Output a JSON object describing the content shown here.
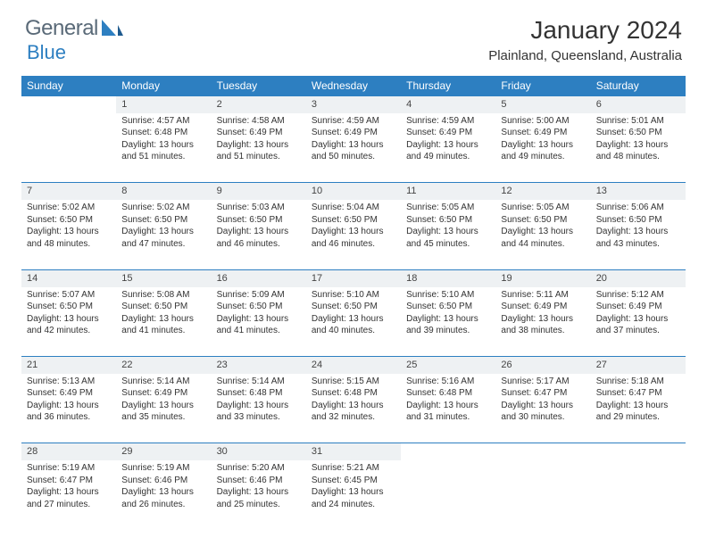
{
  "logo": {
    "text1": "General",
    "text2": "Blue"
  },
  "title": "January 2024",
  "location": "Plainland, Queensland, Australia",
  "colors": {
    "header_bg": "#2d7fc1",
    "header_text": "#ffffff",
    "daynum_bg": "#eef1f3",
    "rule": "#2d7fc1",
    "body_text": "#333333",
    "logo_gray": "#5a6a78",
    "logo_blue": "#2d7fc1",
    "page_bg": "#ffffff"
  },
  "typography": {
    "month_title_pt": 21,
    "location_pt": 11,
    "weekday_pt": 9,
    "daynum_pt": 8,
    "body_pt": 7.5,
    "logo_pt": 18
  },
  "weekdays": [
    "Sunday",
    "Monday",
    "Tuesday",
    "Wednesday",
    "Thursday",
    "Friday",
    "Saturday"
  ],
  "weeks": [
    [
      null,
      {
        "n": "1",
        "sunrise": "4:57 AM",
        "sunset": "6:48 PM",
        "dl": "13 hours and 51 minutes."
      },
      {
        "n": "2",
        "sunrise": "4:58 AM",
        "sunset": "6:49 PM",
        "dl": "13 hours and 51 minutes."
      },
      {
        "n": "3",
        "sunrise": "4:59 AM",
        "sunset": "6:49 PM",
        "dl": "13 hours and 50 minutes."
      },
      {
        "n": "4",
        "sunrise": "4:59 AM",
        "sunset": "6:49 PM",
        "dl": "13 hours and 49 minutes."
      },
      {
        "n": "5",
        "sunrise": "5:00 AM",
        "sunset": "6:49 PM",
        "dl": "13 hours and 49 minutes."
      },
      {
        "n": "6",
        "sunrise": "5:01 AM",
        "sunset": "6:50 PM",
        "dl": "13 hours and 48 minutes."
      }
    ],
    [
      {
        "n": "7",
        "sunrise": "5:02 AM",
        "sunset": "6:50 PM",
        "dl": "13 hours and 48 minutes."
      },
      {
        "n": "8",
        "sunrise": "5:02 AM",
        "sunset": "6:50 PM",
        "dl": "13 hours and 47 minutes."
      },
      {
        "n": "9",
        "sunrise": "5:03 AM",
        "sunset": "6:50 PM",
        "dl": "13 hours and 46 minutes."
      },
      {
        "n": "10",
        "sunrise": "5:04 AM",
        "sunset": "6:50 PM",
        "dl": "13 hours and 46 minutes."
      },
      {
        "n": "11",
        "sunrise": "5:05 AM",
        "sunset": "6:50 PM",
        "dl": "13 hours and 45 minutes."
      },
      {
        "n": "12",
        "sunrise": "5:05 AM",
        "sunset": "6:50 PM",
        "dl": "13 hours and 44 minutes."
      },
      {
        "n": "13",
        "sunrise": "5:06 AM",
        "sunset": "6:50 PM",
        "dl": "13 hours and 43 minutes."
      }
    ],
    [
      {
        "n": "14",
        "sunrise": "5:07 AM",
        "sunset": "6:50 PM",
        "dl": "13 hours and 42 minutes."
      },
      {
        "n": "15",
        "sunrise": "5:08 AM",
        "sunset": "6:50 PM",
        "dl": "13 hours and 41 minutes."
      },
      {
        "n": "16",
        "sunrise": "5:09 AM",
        "sunset": "6:50 PM",
        "dl": "13 hours and 41 minutes."
      },
      {
        "n": "17",
        "sunrise": "5:10 AM",
        "sunset": "6:50 PM",
        "dl": "13 hours and 40 minutes."
      },
      {
        "n": "18",
        "sunrise": "5:10 AM",
        "sunset": "6:50 PM",
        "dl": "13 hours and 39 minutes."
      },
      {
        "n": "19",
        "sunrise": "5:11 AM",
        "sunset": "6:49 PM",
        "dl": "13 hours and 38 minutes."
      },
      {
        "n": "20",
        "sunrise": "5:12 AM",
        "sunset": "6:49 PM",
        "dl": "13 hours and 37 minutes."
      }
    ],
    [
      {
        "n": "21",
        "sunrise": "5:13 AM",
        "sunset": "6:49 PM",
        "dl": "13 hours and 36 minutes."
      },
      {
        "n": "22",
        "sunrise": "5:14 AM",
        "sunset": "6:49 PM",
        "dl": "13 hours and 35 minutes."
      },
      {
        "n": "23",
        "sunrise": "5:14 AM",
        "sunset": "6:48 PM",
        "dl": "13 hours and 33 minutes."
      },
      {
        "n": "24",
        "sunrise": "5:15 AM",
        "sunset": "6:48 PM",
        "dl": "13 hours and 32 minutes."
      },
      {
        "n": "25",
        "sunrise": "5:16 AM",
        "sunset": "6:48 PM",
        "dl": "13 hours and 31 minutes."
      },
      {
        "n": "26",
        "sunrise": "5:17 AM",
        "sunset": "6:47 PM",
        "dl": "13 hours and 30 minutes."
      },
      {
        "n": "27",
        "sunrise": "5:18 AM",
        "sunset": "6:47 PM",
        "dl": "13 hours and 29 minutes."
      }
    ],
    [
      {
        "n": "28",
        "sunrise": "5:19 AM",
        "sunset": "6:47 PM",
        "dl": "13 hours and 27 minutes."
      },
      {
        "n": "29",
        "sunrise": "5:19 AM",
        "sunset": "6:46 PM",
        "dl": "13 hours and 26 minutes."
      },
      {
        "n": "30",
        "sunrise": "5:20 AM",
        "sunset": "6:46 PM",
        "dl": "13 hours and 25 minutes."
      },
      {
        "n": "31",
        "sunrise": "5:21 AM",
        "sunset": "6:45 PM",
        "dl": "13 hours and 24 minutes."
      },
      null,
      null,
      null
    ]
  ],
  "labels": {
    "sunrise": "Sunrise:",
    "sunset": "Sunset:",
    "daylight": "Daylight:"
  }
}
